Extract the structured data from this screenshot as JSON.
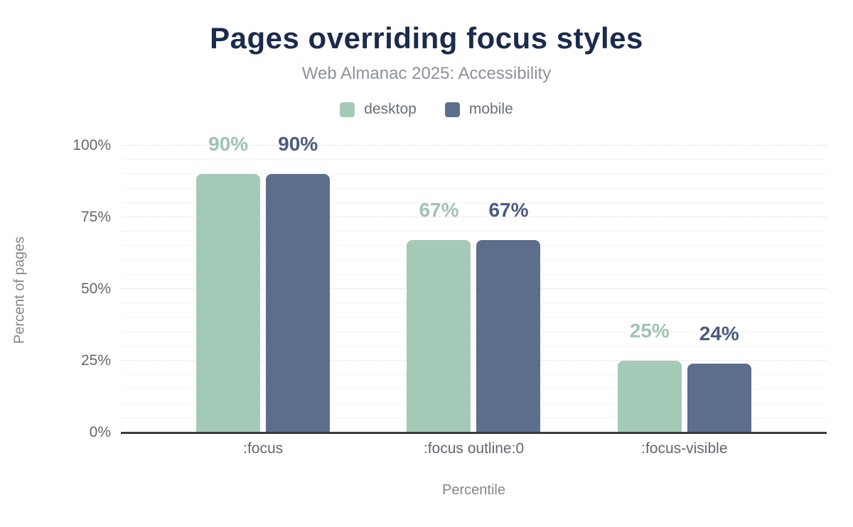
{
  "chart_data": {
    "type": "bar",
    "title": "Pages overriding focus styles",
    "subtitle": "Web Almanac 2025: Accessibility",
    "categories": [
      ":focus",
      ":focus outline:0",
      ":focus-visible"
    ],
    "series": [
      {
        "name": "desktop",
        "values": [
          90,
          67,
          25
        ],
        "color": "#a5c9b7",
        "label_color": "#a0c4b1"
      },
      {
        "name": "mobile",
        "values": [
          90,
          67,
          24
        ],
        "color": "#5c6e8c",
        "label_color": "#4a5c7e"
      }
    ],
    "data_labels": {
      "desktop": [
        "90%",
        "67%",
        "25%"
      ],
      "mobile": [
        "90%",
        "67%",
        "24%"
      ]
    },
    "value_suffix": "%",
    "xlabel": "Percentile",
    "ylabel": "Percent of pages",
    "ylim": [
      0,
      100
    ],
    "yticks": [
      "0%",
      "25%",
      "50%",
      "75%",
      "100%"
    ],
    "grid": {
      "minor_step": 5,
      "major_step": 25,
      "on": true
    },
    "legend_position": "top"
  },
  "colors": {
    "background": "#ffffff",
    "title": "#1b2b4d",
    "subtitle": "#8d9198",
    "axis_line": "#37393d",
    "tick_label": "#63666c",
    "axis_title": "#83868c",
    "legend_label": "#6b6f76",
    "gridline_minor": "#f2f3f4",
    "gridline_major": "#d8dade"
  }
}
